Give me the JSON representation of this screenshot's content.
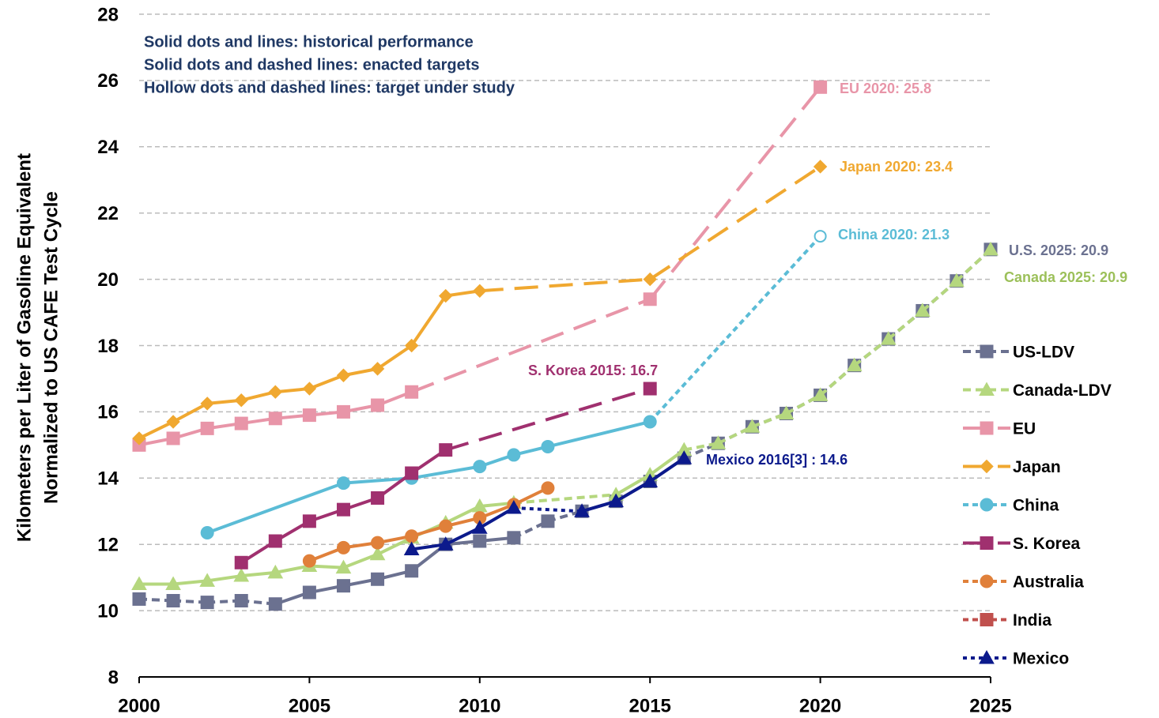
{
  "chart_data": {
    "type": "line",
    "y_label": [
      "Kilometers per Liter of Gasoline Equivalent",
      "Normalized to US CAFE Test Cycle"
    ],
    "notes": [
      "Solid dots and lines: historical performance",
      "Solid dots and dashed lines: enacted targets",
      "Hollow dots and dashed lines: target under study"
    ],
    "xlim": [
      2000,
      2025
    ],
    "xticks": [
      2000,
      2005,
      2010,
      2015,
      2020,
      2025
    ],
    "ylim": [
      8,
      28
    ],
    "yticks": [
      8,
      10,
      12,
      14,
      16,
      18,
      20,
      22,
      24,
      26,
      28
    ],
    "grid": true,
    "series": [
      {
        "name": "US-LDV",
        "color": "#6b7190",
        "marker": "square",
        "dash": "10 6",
        "dashed": [
          [
            2000,
            2004
          ],
          [
            2011,
            2013
          ],
          [
            2016,
            2025
          ]
        ],
        "x": [
          2000,
          2001,
          2002,
          2003,
          2004,
          2005,
          2006,
          2007,
          2008,
          2009,
          2010,
          2011,
          2012,
          2013,
          2014,
          2015,
          2016,
          2017,
          2018,
          2019,
          2020,
          2021,
          2022,
          2023,
          2024,
          2025
        ],
        "values": [
          10.35,
          10.3,
          10.25,
          10.3,
          10.2,
          10.55,
          10.75,
          10.95,
          11.2,
          12.0,
          12.1,
          12.2,
          12.7,
          13.0,
          13.3,
          13.9,
          14.6,
          15.05,
          15.55,
          15.95,
          16.5,
          17.4,
          18.2,
          19.05,
          19.95,
          20.9
        ]
      },
      {
        "name": "Canada-LDV",
        "color": "#b5d77e",
        "marker": "triangle",
        "dash": "10 6",
        "dashed": [
          [
            2011,
            2014
          ],
          [
            2016,
            2025
          ]
        ],
        "x": [
          2000,
          2001,
          2002,
          2003,
          2004,
          2005,
          2006,
          2007,
          2008,
          2009,
          2010,
          2011,
          2014,
          2015,
          2016,
          2017,
          2018,
          2019,
          2020,
          2021,
          2022,
          2023,
          2024,
          2025
        ],
        "values": [
          10.8,
          10.8,
          10.9,
          11.05,
          11.15,
          11.35,
          11.3,
          11.7,
          12.2,
          12.65,
          13.15,
          13.25,
          13.5,
          14.1,
          14.85,
          15.05,
          15.55,
          15.95,
          16.5,
          17.4,
          18.2,
          19.05,
          19.95,
          20.9
        ]
      },
      {
        "name": "EU",
        "color": "#e895a8",
        "marker": "square",
        "dash": "30 14",
        "dashed": [
          [
            2008,
            2020
          ]
        ],
        "x": [
          2000,
          2001,
          2002,
          2003,
          2004,
          2005,
          2006,
          2007,
          2008,
          2015,
          2020
        ],
        "values": [
          15.0,
          15.2,
          15.5,
          15.65,
          15.8,
          15.9,
          16.0,
          16.2,
          16.6,
          19.4,
          25.8
        ]
      },
      {
        "name": "Japan",
        "color": "#f0a830",
        "marker": "diamond",
        "dash": "30 14",
        "dashed": [
          [
            2010,
            2020
          ]
        ],
        "x": [
          2000,
          2001,
          2002,
          2003,
          2004,
          2005,
          2006,
          2007,
          2008,
          2009,
          2010,
          2015,
          2020
        ],
        "values": [
          15.2,
          15.7,
          16.25,
          16.35,
          16.6,
          16.7,
          17.1,
          17.3,
          18.0,
          19.5,
          19.65,
          20.0,
          23.4
        ]
      },
      {
        "name": "China",
        "color": "#5bbcd6",
        "marker": "circle",
        "dash": "7 5",
        "dashed": [
          [
            2015,
            2020
          ]
        ],
        "hollow_x": [
          2020
        ],
        "x": [
          2002,
          2006,
          2008,
          2010,
          2011,
          2012,
          2015,
          2020
        ],
        "values": [
          12.35,
          13.85,
          14.0,
          14.35,
          14.7,
          14.95,
          15.7,
          21.3
        ]
      },
      {
        "name": "S. Korea",
        "color": "#a0306f",
        "marker": "square",
        "dash": "30 14",
        "dashed": [
          [
            2009,
            2015
          ]
        ],
        "x": [
          2003,
          2004,
          2005,
          2006,
          2007,
          2008,
          2009,
          2015
        ],
        "values": [
          11.45,
          12.1,
          12.7,
          13.05,
          13.4,
          14.15,
          14.85,
          16.7
        ]
      },
      {
        "name": "Australia",
        "color": "#e0803a",
        "marker": "circle",
        "dash": "7 5",
        "dashed": [],
        "x": [
          2005,
          2006,
          2007,
          2008,
          2009,
          2010,
          2011,
          2012
        ],
        "values": [
          11.5,
          11.9,
          12.05,
          12.25,
          12.55,
          12.8,
          13.2,
          13.7
        ]
      },
      {
        "name": "India",
        "color": "#c0504d",
        "marker": "square",
        "dash": "7 5",
        "dashed": [],
        "x": [],
        "values": []
      },
      {
        "name": "Mexico",
        "color": "#0c1a8c",
        "marker": "triangle",
        "dash": "5 5",
        "dashed": [
          [
            2011,
            2013
          ]
        ],
        "x": [
          2008,
          2009,
          2010,
          2011,
          2013,
          2014,
          2015,
          2016
        ],
        "values": [
          11.85,
          12.0,
          12.5,
          13.1,
          13.0,
          13.3,
          13.9,
          14.6
        ]
      }
    ],
    "annotations": [
      {
        "text": "EU 2020: 25.8",
        "color": "#e895a8"
      },
      {
        "text": "Japan 2020: 23.4",
        "color": "#f0a830"
      },
      {
        "text": "China 2020: 21.3",
        "color": "#5bbcd6"
      },
      {
        "text": "U.S. 2025: 20.9",
        "color": "#6b7190"
      },
      {
        "text": "Canada 2025: 20.9",
        "color": "#9cc05a"
      },
      {
        "text": "S. Korea 2015: 16.7",
        "color": "#a0306f"
      },
      {
        "text": "Mexico 2016[3] : 14.6",
        "color": "#0c1a8c"
      }
    ]
  }
}
